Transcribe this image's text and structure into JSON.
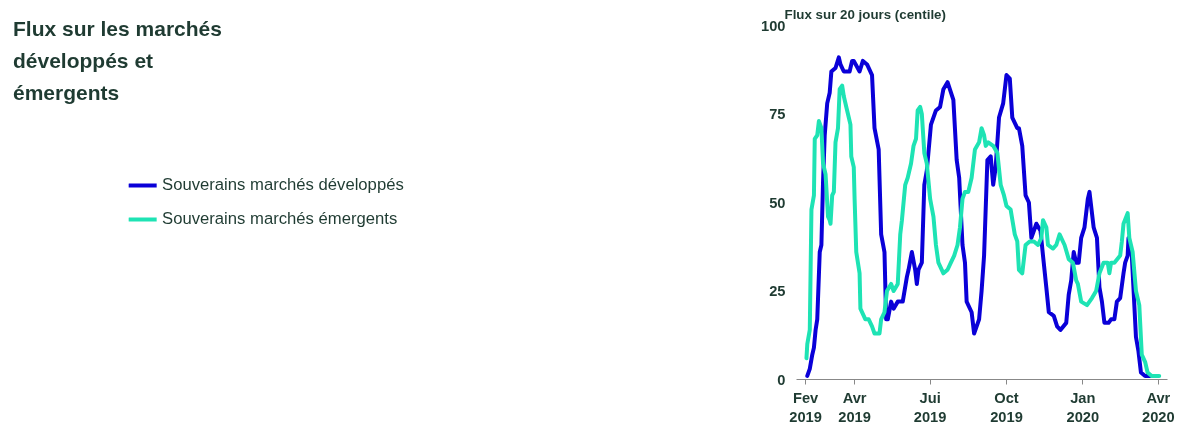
{
  "chart_data": {
    "type": "line",
    "title": "Flux sur les marchés développés et émergents",
    "ylabel": "Flux sur 20 jours (centile)",
    "xlim": [
      "2019-01-21",
      "2020-04-12"
    ],
    "xticks": [
      {
        "value": "2019-02-01",
        "label": "Fev\n2019"
      },
      {
        "value": "2019-04-01",
        "label": "Avr\n2019"
      },
      {
        "value": "2019-07-01",
        "label": "Jui\n2019"
      },
      {
        "value": "2019-10-01",
        "label": "Oct\n2019"
      },
      {
        "value": "2020-01-01",
        "label": "Jan\n2020"
      },
      {
        "value": "2020-04-01",
        "label": "Avr\n2020"
      }
    ],
    "ylim": [
      0,
      100
    ],
    "yticks": [
      0,
      25,
      50,
      75,
      100
    ],
    "grid": false,
    "legend": "left",
    "line_style": "solid",
    "marker": "none",
    "series": [
      {
        "name": "Souverains marchés développés",
        "color": "#0a00d8",
        "x": [
          "2019-02-03",
          "2019-02-06",
          "2019-02-09",
          "2019-02-11",
          "2019-02-13",
          "2019-02-15",
          "2019-02-18",
          "2019-02-20",
          "2019-02-22",
          "2019-02-24",
          "2019-02-27",
          "2019-03-02",
          "2019-03-04",
          "2019-03-09",
          "2019-03-13",
          "2019-03-15",
          "2019-03-19",
          "2019-03-23",
          "2019-03-26",
          "2019-03-29",
          "2019-03-31",
          "2019-04-07",
          "2019-04-11",
          "2019-04-16",
          "2019-04-22",
          "2019-04-25",
          "2019-04-30",
          "2019-05-03",
          "2019-05-07",
          "2019-05-09",
          "2019-05-11",
          "2019-05-15",
          "2019-05-18",
          "2019-05-23",
          "2019-05-29",
          "2019-06-03",
          "2019-06-05",
          "2019-06-09",
          "2019-06-13",
          "2019-06-15",
          "2019-06-17",
          "2019-06-21",
          "2019-06-24",
          "2019-06-27",
          "2019-07-02",
          "2019-07-08",
          "2019-07-13",
          "2019-07-17",
          "2019-07-22",
          "2019-07-29",
          "2019-08-02",
          "2019-08-05",
          "2019-08-09",
          "2019-08-12",
          "2019-08-14",
          "2019-08-20",
          "2019-08-23",
          "2019-08-29",
          "2019-09-01",
          "2019-09-04",
          "2019-09-08",
          "2019-09-12",
          "2019-09-15",
          "2019-09-18",
          "2019-09-22",
          "2019-09-27",
          "2019-10-01",
          "2019-10-05",
          "2019-10-08",
          "2019-10-14",
          "2019-10-16",
          "2019-10-20",
          "2019-10-24",
          "2019-10-28",
          "2019-10-31",
          "2019-11-06",
          "2019-11-11",
          "2019-11-14",
          "2019-11-18",
          "2019-11-21",
          "2019-11-27",
          "2019-12-01",
          "2019-12-05",
          "2019-12-12",
          "2019-12-15",
          "2019-12-18",
          "2019-12-21",
          "2019-12-24",
          "2019-12-27",
          "2019-12-30",
          "2020-01-03",
          "2020-01-07",
          "2020-01-09",
          "2020-01-14",
          "2020-01-18",
          "2020-01-21",
          "2020-01-24",
          "2020-01-27",
          "2020-02-01",
          "2020-02-04",
          "2020-02-08",
          "2020-02-11",
          "2020-02-15",
          "2020-02-19",
          "2020-02-21",
          "2020-02-24",
          "2020-02-25",
          "2020-02-29",
          "2020-03-05",
          "2020-03-08",
          "2020-03-11",
          "2020-03-16",
          "2020-03-22"
        ],
        "values": [
          1,
          3,
          7,
          9,
          14,
          17,
          36,
          38,
          56,
          69,
          78,
          81,
          87,
          88,
          91,
          89,
          87,
          87,
          87,
          90,
          90,
          87,
          90,
          89,
          86,
          71,
          65,
          41,
          36,
          17,
          17,
          22,
          20,
          22,
          22,
          29,
          31,
          36,
          31,
          27,
          31,
          33,
          55,
          59,
          72,
          76,
          77,
          82,
          84,
          79,
          62,
          57,
          38,
          33,
          22,
          19,
          13,
          17,
          25,
          35,
          62,
          63,
          55,
          60,
          74,
          78,
          86,
          85,
          74,
          71,
          71,
          66,
          52,
          50,
          40,
          44,
          42,
          35,
          26,
          19,
          18,
          15,
          14,
          16,
          24,
          28,
          36,
          33,
          33,
          40,
          43,
          51,
          53,
          43,
          40,
          26,
          22,
          16,
          16,
          17,
          17,
          22,
          23,
          30,
          33,
          35,
          40,
          35,
          12,
          8,
          2,
          1,
          1
        ]
      },
      {
        "name": "Souverains marchés émergents",
        "color": "#1ee3b4",
        "x": [
          "2019-02-02",
          "2019-02-03",
          "2019-02-06",
          "2019-02-08",
          "2019-02-11",
          "2019-02-12",
          "2019-02-15",
          "2019-02-17",
          "2019-02-20",
          "2019-02-22",
          "2019-02-25",
          "2019-02-28",
          "2019-03-02",
          "2019-03-03",
          "2019-03-05",
          "2019-03-07",
          "2019-03-09",
          "2019-03-12",
          "2019-03-14",
          "2019-03-17",
          "2019-03-19",
          "2019-03-22",
          "2019-03-25",
          "2019-03-27",
          "2019-03-28",
          "2019-03-31",
          "2019-04-01",
          "2019-04-03",
          "2019-04-07",
          "2019-04-08",
          "2019-04-14",
          "2019-04-18",
          "2019-04-22",
          "2019-04-25",
          "2019-05-01",
          "2019-05-03",
          "2019-05-07",
          "2019-05-10",
          "2019-05-15",
          "2019-05-18",
          "2019-05-23",
          "2019-05-26",
          "2019-05-28",
          "2019-06-01",
          "2019-06-04",
          "2019-06-08",
          "2019-06-11",
          "2019-06-14",
          "2019-06-16",
          "2019-06-19",
          "2019-06-21",
          "2019-06-24",
          "2019-06-27",
          "2019-07-01",
          "2019-07-05",
          "2019-07-08",
          "2019-07-11",
          "2019-07-17",
          "2019-07-22",
          "2019-07-26",
          "2019-07-30",
          "2019-08-03",
          "2019-08-06",
          "2019-08-09",
          "2019-08-12",
          "2019-08-16",
          "2019-08-20",
          "2019-08-24",
          "2019-08-29",
          "2019-09-01",
          "2019-09-04",
          "2019-09-06",
          "2019-09-09",
          "2019-09-15",
          "2019-09-20",
          "2019-09-24",
          "2019-09-28",
          "2019-10-01",
          "2019-10-06",
          "2019-10-11",
          "2019-10-14",
          "2019-10-16",
          "2019-10-20",
          "2019-10-24",
          "2019-10-29",
          "2019-11-03",
          "2019-11-08",
          "2019-11-12",
          "2019-11-14",
          "2019-11-18",
          "2019-11-20",
          "2019-11-26",
          "2019-11-30",
          "2019-12-04",
          "2019-12-10",
          "2019-12-15",
          "2019-12-20",
          "2019-12-24",
          "2019-12-26",
          "2019-12-30",
          "2020-01-06",
          "2020-01-12",
          "2020-01-17",
          "2020-01-21",
          "2020-01-26",
          "2020-01-31",
          "2020-02-02",
          "2020-02-04",
          "2020-02-08",
          "2020-02-15",
          "2020-02-17",
          "2020-02-19",
          "2020-02-24",
          "2020-02-26",
          "2020-03-01",
          "2020-03-05",
          "2020-03-09",
          "2020-03-12",
          "2020-03-16",
          "2020-03-19",
          "2020-03-24",
          "2020-04-02"
        ],
        "values": [
          6,
          10,
          14,
          48,
          52,
          68,
          69,
          73,
          71,
          61,
          58,
          46,
          45,
          44,
          52,
          53,
          67,
          71,
          82,
          83,
          80,
          77,
          74,
          72,
          63,
          60,
          51,
          36,
          30,
          20,
          17,
          17,
          15,
          13,
          13,
          17,
          19,
          25,
          27,
          25,
          27,
          41,
          45,
          55,
          57,
          61,
          66,
          68,
          76,
          77,
          75,
          64,
          61,
          51,
          46,
          38,
          33,
          30,
          31,
          33,
          35,
          38,
          43,
          51,
          53,
          53,
          57,
          65,
          67,
          71,
          69,
          66,
          67,
          66,
          64,
          55,
          52,
          49,
          48,
          41,
          39,
          31,
          30,
          38,
          39,
          39,
          38,
          40,
          45,
          43,
          38,
          37,
          38,
          41,
          38,
          34,
          33,
          28,
          27,
          22,
          21,
          23,
          25,
          30,
          33,
          33,
          30,
          33,
          33,
          35,
          39,
          44,
          47,
          40,
          36,
          25,
          21,
          7,
          5,
          2,
          1,
          1
        ]
      }
    ]
  }
}
